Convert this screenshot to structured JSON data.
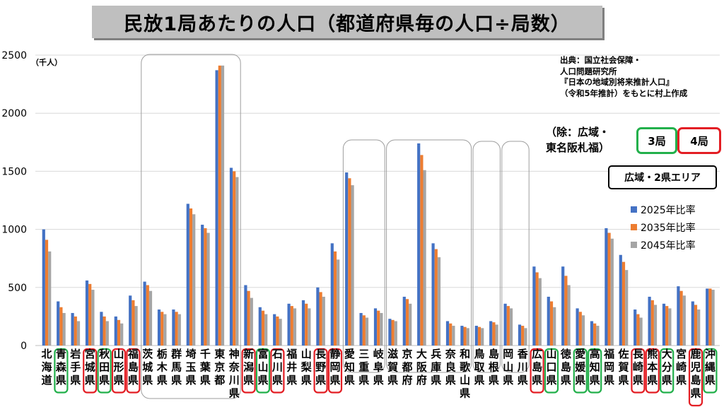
{
  "title": "民放1局あたりの人口（都道府県毎の人口÷局数）",
  "unit_label": "（千人）",
  "source": {
    "lines": [
      "出典：国立社会保障・",
      "人口問題研究所",
      "『日本の地域別将来推計人口』",
      "（令和5年推計）をもとに村上作成"
    ]
  },
  "exclusion": {
    "lines": [
      "（除：広域・",
      "東名阪札福）"
    ],
    "green_label": "3局",
    "red_label": "4局"
  },
  "wide_area_label": "広域・2県エリア",
  "colors": {
    "s2025": "#4472c4",
    "s2035": "#ed7d31",
    "s2045": "#a5a5a5",
    "green_box": "#22b04b",
    "red_box": "#e31e24"
  },
  "chart_data": {
    "type": "bar",
    "ylim": [
      0,
      2500
    ],
    "yticks": [
      0,
      500,
      1000,
      1500,
      2000,
      2500
    ],
    "grid": true,
    "legend_position": "right",
    "categories": [
      "北海道",
      "青森県",
      "岩手県",
      "宮城県",
      "秋田県",
      "山形県",
      "福島県",
      "茨城県",
      "栃木県",
      "群馬県",
      "埼玉県",
      "千葉県",
      "東京都",
      "神奈川県",
      "新潟県",
      "富山県",
      "石川県",
      "福井県",
      "山梨県",
      "長野県",
      "静岡県",
      "愛知県",
      "三重県",
      "岐阜県",
      "滋賀県",
      "京都府",
      "大阪府",
      "兵庫県",
      "奈良県",
      "和歌山県",
      "鳥取県",
      "島根県",
      "岡山県",
      "香川県",
      "広島県",
      "山口県",
      "徳島県",
      "愛媛県",
      "高知県",
      "福岡県",
      "佐賀県",
      "長崎県",
      "熊本県",
      "大分県",
      "宮崎県",
      "鹿児島県",
      "沖縄県"
    ],
    "series": [
      {
        "name": "2025年比率",
        "values": [
          1000,
          380,
          280,
          560,
          290,
          250,
          430,
          550,
          310,
          310,
          1220,
          1040,
          2370,
          1530,
          520,
          330,
          270,
          360,
          390,
          500,
          880,
          1490,
          280,
          320,
          230,
          420,
          1740,
          880,
          210,
          170,
          170,
          210,
          360,
          180,
          680,
          420,
          680,
          320,
          210,
          1010,
          780,
          310,
          420,
          360,
          510,
          380,
          490
        ]
      },
      {
        "name": "2035年比率",
        "values": [
          910,
          330,
          250,
          530,
          250,
          220,
          390,
          520,
          290,
          290,
          1180,
          1010,
          2410,
          1500,
          470,
          300,
          250,
          340,
          360,
          460,
          810,
          1440,
          260,
          300,
          220,
          400,
          1640,
          830,
          190,
          160,
          160,
          200,
          340,
          170,
          630,
          380,
          600,
          290,
          190,
          970,
          720,
          270,
          390,
          340,
          470,
          350,
          490
        ]
      },
      {
        "name": "2045年比率",
        "values": [
          810,
          280,
          210,
          480,
          210,
          190,
          340,
          470,
          270,
          270,
          1130,
          970,
          2410,
          1450,
          410,
          270,
          230,
          320,
          320,
          420,
          740,
          1380,
          240,
          280,
          210,
          360,
          1510,
          760,
          170,
          150,
          150,
          180,
          320,
          150,
          580,
          330,
          520,
          260,
          170,
          920,
          650,
          240,
          350,
          320,
          430,
          310,
          480
        ]
      }
    ]
  },
  "frames": {
    "green": [
      "青森県",
      "秋田県",
      "富山県",
      "愛媛県",
      "高知県",
      "山口県",
      "大分県",
      "沖縄県"
    ],
    "red": [
      "宮城県",
      "山形県",
      "福島県",
      "新潟県",
      "石川県",
      "長野県",
      "静岡県",
      "広島県",
      "長崎県",
      "熊本県",
      "鹿児島県"
    ],
    "wide_groups": [
      [
        "茨城県",
        "神奈川県"
      ],
      [
        "愛知県",
        "岐阜県"
      ],
      [
        "滋賀県",
        "和歌山県"
      ],
      [
        "鳥取県",
        "島根県"
      ],
      [
        "岡山県",
        "香川県"
      ]
    ]
  }
}
